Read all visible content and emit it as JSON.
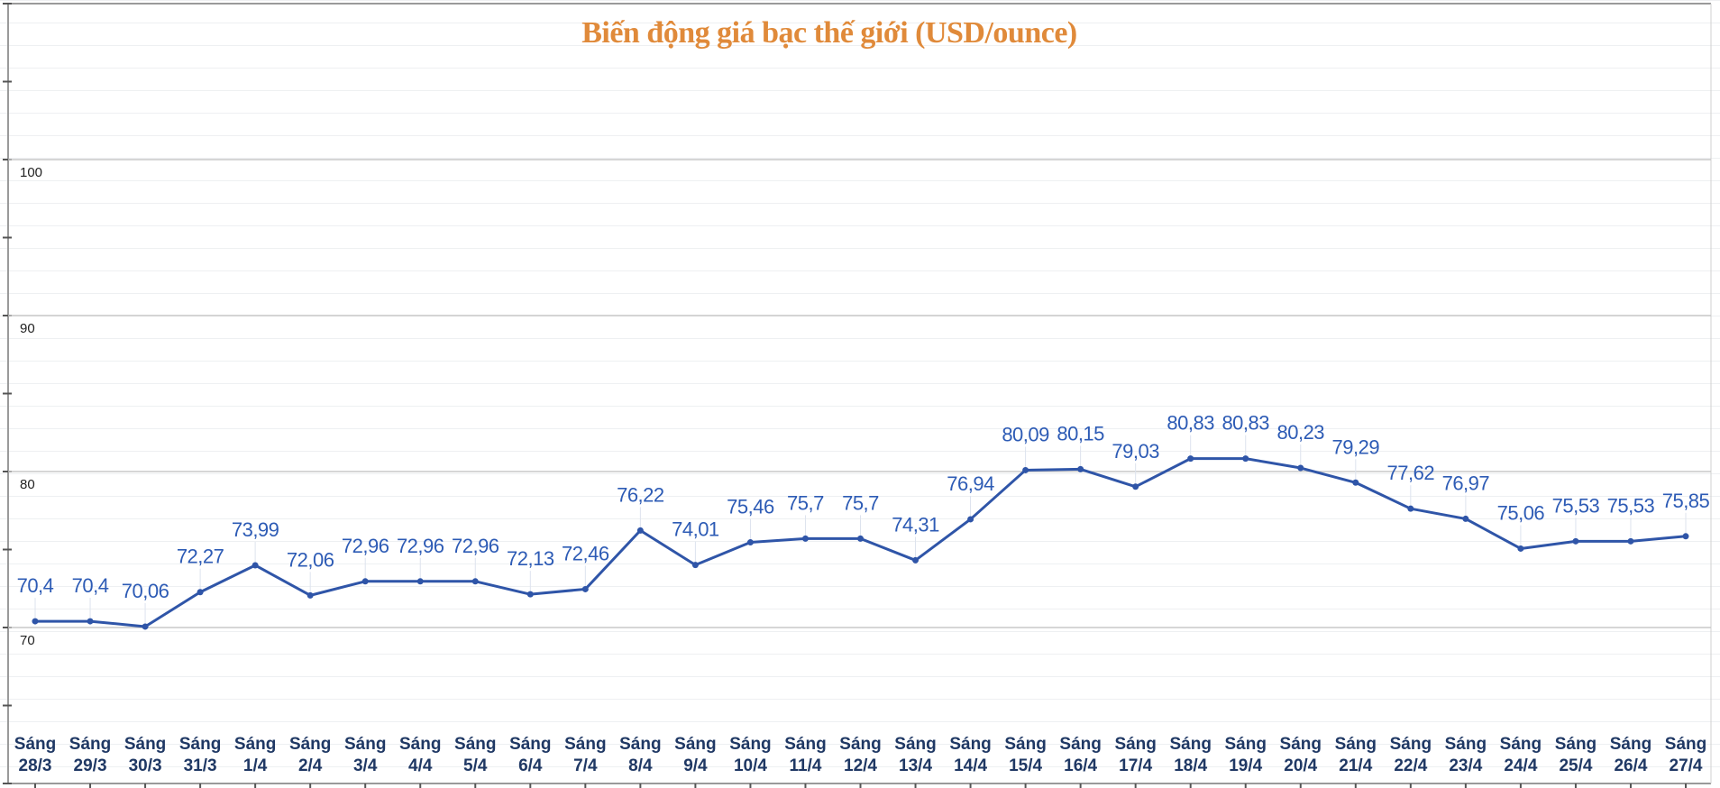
{
  "chart_data": {
    "type": "line",
    "title": "Biến động giá bạc thế giới (USD/ounce)",
    "xlabel": "",
    "ylabel": "",
    "ylim": [
      60,
      110
    ],
    "yticks": [
      70,
      80,
      90,
      100
    ],
    "grid": true,
    "categories": [
      [
        "Sáng",
        "28/3"
      ],
      [
        "Sáng",
        "29/3"
      ],
      [
        "Sáng",
        "30/3"
      ],
      [
        "Sáng",
        "31/3"
      ],
      [
        "Sáng",
        "1/4"
      ],
      [
        "Sáng",
        "2/4"
      ],
      [
        "Sáng",
        "3/4"
      ],
      [
        "Sáng",
        "4/4"
      ],
      [
        "Sáng",
        "5/4"
      ],
      [
        "Sáng",
        "6/4"
      ],
      [
        "Sáng",
        "7/4"
      ],
      [
        "Sáng",
        "8/4"
      ],
      [
        "Sáng",
        "9/4"
      ],
      [
        "Sáng",
        "10/4"
      ],
      [
        "Sáng",
        "11/4"
      ],
      [
        "Sáng",
        "12/4"
      ],
      [
        "Sáng",
        "13/4"
      ],
      [
        "Sáng",
        "14/4"
      ],
      [
        "Sáng",
        "15/4"
      ],
      [
        "Sáng",
        "16/4"
      ],
      [
        "Sáng",
        "17/4"
      ],
      [
        "Sáng",
        "18/4"
      ],
      [
        "Sáng",
        "19/4"
      ],
      [
        "Sáng",
        "20/4"
      ],
      [
        "Sáng",
        "21/4"
      ],
      [
        "Sáng",
        "22/4"
      ],
      [
        "Sáng",
        "23/4"
      ],
      [
        "Sáng",
        "24/4"
      ],
      [
        "Sáng",
        "25/4"
      ],
      [
        "Sáng",
        "26/4"
      ],
      [
        "Sáng",
        "27/4"
      ]
    ],
    "values": [
      70.4,
      70.4,
      70.06,
      72.27,
      73.99,
      72.06,
      72.96,
      72.96,
      72.96,
      72.13,
      72.46,
      76.22,
      74.01,
      75.46,
      75.7,
      75.7,
      74.31,
      76.94,
      80.09,
      80.15,
      79.03,
      80.83,
      80.83,
      80.23,
      79.29,
      77.62,
      76.97,
      75.06,
      75.53,
      75.53,
      75.85
    ],
    "data_labels": [
      "70,4",
      "70,4",
      "70,06",
      "72,27",
      "73,99",
      "72,06",
      "72,96",
      "72,96",
      "72,96",
      "72,13",
      "72,46",
      "76,22",
      "74,01",
      "75,46",
      "75,7",
      "75,7",
      "74,31",
      "76,94",
      "80,09",
      "80,15",
      "79,03",
      "80,83",
      "80,83",
      "80,23",
      "79,29",
      "77,62",
      "76,97",
      "75,06",
      "75,53",
      "75,53",
      "75,85"
    ],
    "colors": {
      "line": "#2f55a8",
      "data_label": "#2d5bb5",
      "category_label": "#1f3864",
      "title": "#e08a3a"
    }
  }
}
